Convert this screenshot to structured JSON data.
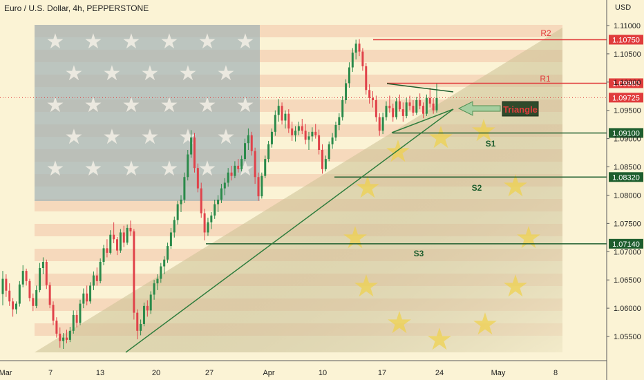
{
  "header": {
    "title": "Euro / U.S. Dollar, 4h, PEPPERSTONE",
    "currency": "USD"
  },
  "colors": {
    "background": "#fbf3d5",
    "candle_up": "#2a8a4a",
    "candle_down": "#e0424a",
    "resistance": "#e03c3c",
    "support": "#1e5e2e",
    "trendline": "#2f7d3d",
    "last_price": "#e03c3c"
  },
  "chart_data": {
    "type": "candlestick",
    "symbol": "EURUSD",
    "timeframe": "4h",
    "y_axis": {
      "range": [
        1.051,
        1.1115
      ],
      "ticks": [
        1.055,
        1.06,
        1.065,
        1.07,
        1.075,
        1.08,
        1.085,
        1.09,
        1.095,
        1.1,
        1.105,
        1.11
      ],
      "tick_labels": [
        "1.05500",
        "1.06000",
        "1.06500",
        "1.07000",
        "1.07500",
        "1.08000",
        "1.08500",
        "1.09000",
        "1.09500",
        "1.10000",
        "1.10500",
        "1.11000"
      ]
    },
    "x_axis": {
      "tick_labels": [
        "Mar",
        "7",
        "13",
        "20",
        "27",
        "Apr",
        "10",
        "17",
        "24",
        "May",
        "8"
      ]
    },
    "levels": [
      {
        "name": "R2",
        "price": 1.1075,
        "price_label": "1.10750",
        "kind": "resistance"
      },
      {
        "name": "R1",
        "price": 1.0998,
        "price_label": "1.09980",
        "kind": "resistance"
      },
      {
        "name": "S1",
        "price": 1.091,
        "price_label": "1.09100",
        "kind": "support"
      },
      {
        "name": "S2",
        "price": 1.0832,
        "price_label": "1.08320",
        "kind": "support"
      },
      {
        "name": "S3",
        "price": 1.0714,
        "price_label": "1.07140",
        "kind": "support"
      }
    ],
    "last_price": {
      "price": 1.09725,
      "label": "1.09725"
    },
    "annotations": {
      "pattern_label": "Triangle"
    },
    "candles_approx": [
      [
        1.0625,
        1.0666,
        1.0605,
        1.0652
      ],
      [
        1.0652,
        1.066,
        1.062,
        1.0631
      ],
      [
        1.0631,
        1.0644,
        1.0604,
        1.0612
      ],
      [
        1.0612,
        1.0618,
        1.0585,
        1.0598
      ],
      [
        1.0598,
        1.0612,
        1.059,
        1.0608
      ],
      [
        1.0608,
        1.0648,
        1.0603,
        1.0642
      ],
      [
        1.0642,
        1.0676,
        1.0637,
        1.0666
      ],
      [
        1.0666,
        1.067,
        1.064,
        1.0648
      ],
      [
        1.0648,
        1.0652,
        1.0612,
        1.0618
      ],
      [
        1.0618,
        1.0626,
        1.0595,
        1.0604
      ],
      [
        1.0604,
        1.064,
        1.06,
        1.0632
      ],
      [
        1.0632,
        1.068,
        1.0628,
        1.0671
      ],
      [
        1.0671,
        1.069,
        1.066,
        1.0682
      ],
      [
        1.0682,
        1.0686,
        1.0634,
        1.0641
      ],
      [
        1.0641,
        1.0646,
        1.06,
        1.0606
      ],
      [
        1.0606,
        1.0612,
        1.057,
        1.0578
      ],
      [
        1.0578,
        1.0584,
        1.0548,
        1.0555
      ],
      [
        1.0555,
        1.0566,
        1.053,
        1.0542
      ],
      [
        1.0542,
        1.0556,
        1.0528,
        1.0548
      ],
      [
        1.0548,
        1.0562,
        1.0538,
        1.0544
      ],
      [
        1.0544,
        1.0567,
        1.054,
        1.056
      ],
      [
        1.056,
        1.0596,
        1.0555,
        1.0588
      ],
      [
        1.0588,
        1.0596,
        1.0566,
        1.0574
      ],
      [
        1.0574,
        1.0615,
        1.057,
        1.0608
      ],
      [
        1.0608,
        1.0635,
        1.06,
        1.0626
      ],
      [
        1.0626,
        1.064,
        1.0605,
        1.0612
      ],
      [
        1.0612,
        1.0646,
        1.0608,
        1.064
      ],
      [
        1.064,
        1.0665,
        1.0632,
        1.0658
      ],
      [
        1.0658,
        1.0672,
        1.064,
        1.0648
      ],
      [
        1.0648,
        1.0688,
        1.0644,
        1.0682
      ],
      [
        1.0682,
        1.0712,
        1.0676,
        1.0706
      ],
      [
        1.0706,
        1.0722,
        1.069,
        1.0698
      ],
      [
        1.0698,
        1.0738,
        1.0695,
        1.073
      ],
      [
        1.073,
        1.0752,
        1.0715,
        1.0722
      ],
      [
        1.0722,
        1.0726,
        1.0694,
        1.0702
      ],
      [
        1.0702,
        1.074,
        1.0698,
        1.0734
      ],
      [
        1.0734,
        1.0746,
        1.0708,
        1.0716
      ],
      [
        1.0716,
        1.0748,
        1.0712,
        1.0742
      ],
      [
        1.0742,
        1.0755,
        1.0728,
        1.0736
      ],
      [
        1.0736,
        1.074,
        1.058,
        1.0592
      ],
      [
        1.0592,
        1.0598,
        1.0545,
        1.056
      ],
      [
        1.056,
        1.058,
        1.0552,
        1.0572
      ],
      [
        1.0572,
        1.061,
        1.0568,
        1.0604
      ],
      [
        1.0604,
        1.0614,
        1.0585,
        1.0596
      ],
      [
        1.0596,
        1.063,
        1.059,
        1.0624
      ],
      [
        1.0624,
        1.065,
        1.0615,
        1.0644
      ],
      [
        1.0644,
        1.066,
        1.0632,
        1.0652
      ],
      [
        1.0652,
        1.068,
        1.0645,
        1.0674
      ],
      [
        1.0674,
        1.0692,
        1.066,
        1.0686
      ],
      [
        1.0686,
        1.0716,
        1.068,
        1.071
      ],
      [
        1.071,
        1.0742,
        1.0705,
        1.0734
      ],
      [
        1.0734,
        1.0762,
        1.0725,
        1.0756
      ],
      [
        1.0756,
        1.079,
        1.0748,
        1.0784
      ],
      [
        1.0784,
        1.08,
        1.077,
        1.0792
      ],
      [
        1.0792,
        1.084,
        1.0786,
        1.0832
      ],
      [
        1.0832,
        1.088,
        1.0826,
        1.0872
      ],
      [
        1.0872,
        1.0915,
        1.0866,
        1.0902
      ],
      [
        1.0902,
        1.091,
        1.084,
        1.0848
      ],
      [
        1.0848,
        1.0856,
        1.0805,
        1.0812
      ],
      [
        1.0812,
        1.0822,
        1.076,
        1.0768
      ],
      [
        1.0768,
        1.0776,
        1.072,
        1.0734
      ],
      [
        1.0734,
        1.076,
        1.0728,
        1.0752
      ],
      [
        1.0752,
        1.077,
        1.074,
        1.0764
      ],
      [
        1.0764,
        1.0792,
        1.0758,
        1.0784
      ],
      [
        1.0784,
        1.08,
        1.077,
        1.0792
      ],
      [
        1.0792,
        1.082,
        1.0786,
        1.0812
      ],
      [
        1.0812,
        1.083,
        1.08,
        1.0822
      ],
      [
        1.0822,
        1.0848,
        1.0815,
        1.084
      ],
      [
        1.084,
        1.0852,
        1.0826,
        1.0834
      ],
      [
        1.0834,
        1.086,
        1.083,
        1.0852
      ],
      [
        1.0852,
        1.0864,
        1.084,
        1.0846
      ],
      [
        1.0846,
        1.087,
        1.0842,
        1.0864
      ],
      [
        1.0864,
        1.09,
        1.086,
        1.0892
      ],
      [
        1.0892,
        1.0918,
        1.088,
        1.0906
      ],
      [
        1.0906,
        1.0912,
        1.087,
        1.0878
      ],
      [
        1.0878,
        1.0884,
        1.082,
        1.0832
      ],
      [
        1.0832,
        1.084,
        1.079,
        1.0798
      ],
      [
        1.0798,
        1.084,
        1.0794,
        1.0834
      ],
      [
        1.0834,
        1.087,
        1.083,
        1.0864
      ],
      [
        1.0864,
        1.0896,
        1.0858,
        1.089
      ],
      [
        1.089,
        1.0918,
        1.0884,
        1.0912
      ],
      [
        1.0912,
        1.095,
        1.0905,
        1.0942
      ],
      [
        1.0942,
        1.097,
        1.093,
        1.0958
      ],
      [
        1.0958,
        1.0964,
        1.0925,
        1.0932
      ],
      [
        1.0932,
        1.095,
        1.0918,
        1.0944
      ],
      [
        1.0944,
        1.0952,
        1.091,
        1.0918
      ],
      [
        1.0918,
        1.093,
        1.0896,
        1.0906
      ],
      [
        1.0906,
        1.0922,
        1.0895,
        1.0914
      ],
      [
        1.0914,
        1.093,
        1.0906,
        1.0922
      ],
      [
        1.0922,
        1.0935,
        1.0908,
        1.0914
      ],
      [
        1.0914,
        1.0926,
        1.089,
        1.0898
      ],
      [
        1.0898,
        1.0912,
        1.088,
        1.0904
      ],
      [
        1.0904,
        1.092,
        1.0895,
        1.0912
      ],
      [
        1.0912,
        1.0926,
        1.09,
        1.0906
      ],
      [
        1.0906,
        1.0916,
        1.0872,
        1.088
      ],
      [
        1.088,
        1.089,
        1.0838,
        1.0846
      ],
      [
        1.0846,
        1.087,
        1.0842,
        1.0864
      ],
      [
        1.0864,
        1.0895,
        1.086,
        1.089
      ],
      [
        1.089,
        1.091,
        1.0882,
        1.0902
      ],
      [
        1.0902,
        1.093,
        1.0896,
        1.0924
      ],
      [
        1.0924,
        1.0945,
        1.0915,
        1.0938
      ],
      [
        1.0938,
        1.0975,
        1.0932,
        1.0968
      ],
      [
        1.0968,
        1.1005,
        1.0962,
        1.0998
      ],
      [
        1.0998,
        1.1035,
        1.099,
        1.1026
      ],
      [
        1.1026,
        1.106,
        1.1018,
        1.1052
      ],
      [
        1.1052,
        1.1075,
        1.104,
        1.1068
      ],
      [
        1.1068,
        1.1076,
        1.1046,
        1.1054
      ],
      [
        1.1054,
        1.106,
        1.102,
        1.1028
      ],
      [
        1.1028,
        1.1034,
        1.0978,
        1.0986
      ],
      [
        1.0986,
        1.0996,
        1.0962,
        1.0972
      ],
      [
        1.0972,
        1.0984,
        1.0955,
        1.0968
      ],
      [
        1.0968,
        1.0976,
        1.093,
        1.0938
      ],
      [
        1.0938,
        1.0945,
        1.0905,
        1.0914
      ],
      [
        1.0914,
        1.0946,
        1.0908,
        1.0938
      ],
      [
        1.0938,
        1.0966,
        1.0932,
        1.0958
      ],
      [
        1.0958,
        1.0976,
        1.0946,
        1.0954
      ],
      [
        1.0954,
        1.0962,
        1.093,
        1.0938
      ],
      [
        1.0938,
        1.0972,
        1.0934,
        1.0966
      ],
      [
        1.0966,
        1.0978,
        1.0948,
        1.0952
      ],
      [
        1.0952,
        1.0964,
        1.093,
        1.094
      ],
      [
        1.094,
        1.0972,
        1.0936,
        1.0964
      ],
      [
        1.0964,
        1.0976,
        1.095,
        1.0958
      ],
      [
        1.0958,
        1.0968,
        1.094,
        1.0946
      ],
      [
        1.0946,
        1.0974,
        1.0942,
        1.0968
      ],
      [
        1.0968,
        1.098,
        1.0952,
        1.0958
      ],
      [
        1.0958,
        1.0964,
        1.0936,
        1.0944
      ],
      [
        1.0944,
        1.0978,
        1.094,
        1.0972
      ],
      [
        1.0972,
        1.099,
        1.0955,
        1.0962
      ],
      [
        1.0962,
        1.0972,
        1.0944,
        1.095
      ],
      [
        1.095,
        1.0998,
        1.0946,
        1.0972
      ]
    ]
  }
}
